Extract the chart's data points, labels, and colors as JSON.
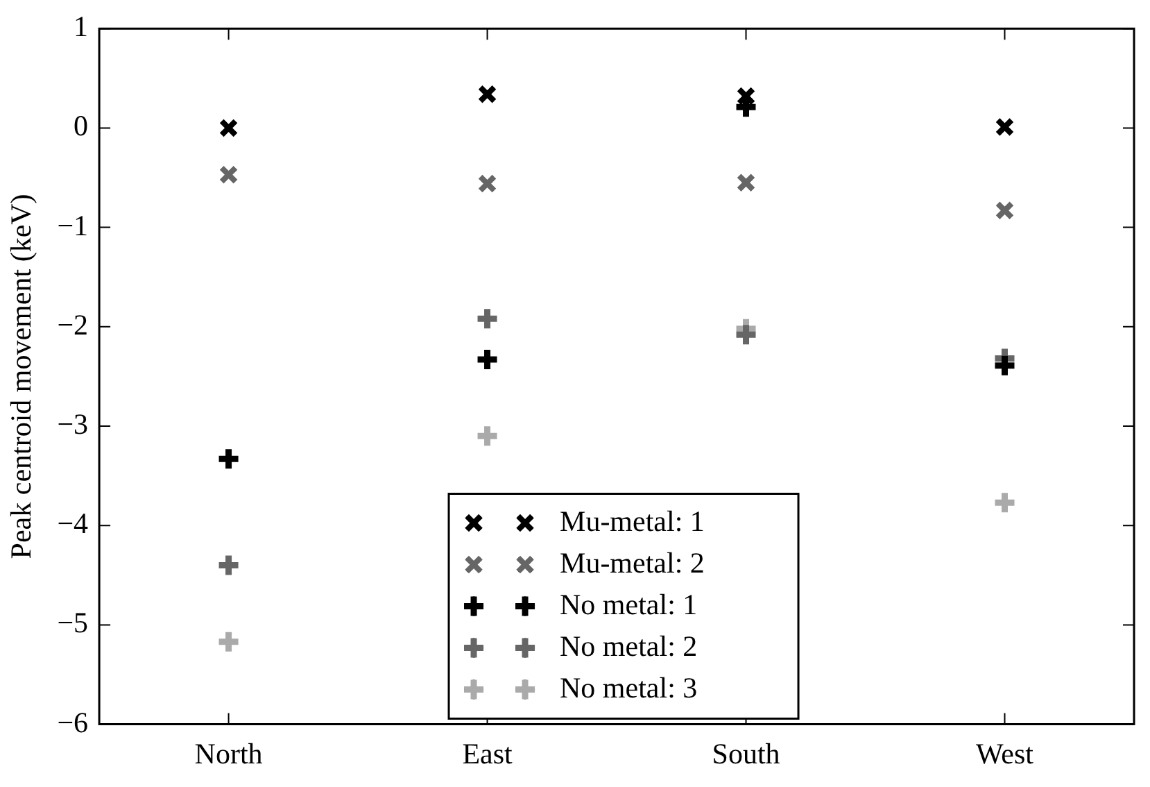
{
  "chart_data": {
    "type": "scatter",
    "ylabel": "Peak centroid movement (keV)",
    "categories": [
      "North",
      "East",
      "South",
      "West"
    ],
    "ylim": [
      -6,
      1
    ],
    "yticks": [
      -6,
      -5,
      -4,
      -3,
      -2,
      -1,
      0,
      1
    ],
    "grid": false,
    "legend": "bottom",
    "series": [
      {
        "name": "Mu-metal: 1",
        "color": "#000000",
        "marker": "cross",
        "values": [
          0,
          0.34,
          0.32,
          0.01
        ]
      },
      {
        "name": "Mu-metal: 2",
        "color": "#666666",
        "marker": "cross",
        "values": [
          -0.47,
          -0.56,
          -0.55,
          -0.83
        ]
      },
      {
        "name": "No metal: 1",
        "color": "#000000",
        "marker": "plus",
        "values": [
          -3.33,
          -2.33,
          0.21,
          -2.39
        ]
      },
      {
        "name": "No metal: 2",
        "color": "#666666",
        "marker": "plus",
        "values": [
          -4.4,
          -1.92,
          -2.08,
          -2.32
        ]
      },
      {
        "name": "No metal: 3",
        "color": "#aaaaaa",
        "marker": "plus",
        "values": [
          -5.17,
          -3.1,
          -2.02,
          -3.77
        ]
      }
    ]
  }
}
